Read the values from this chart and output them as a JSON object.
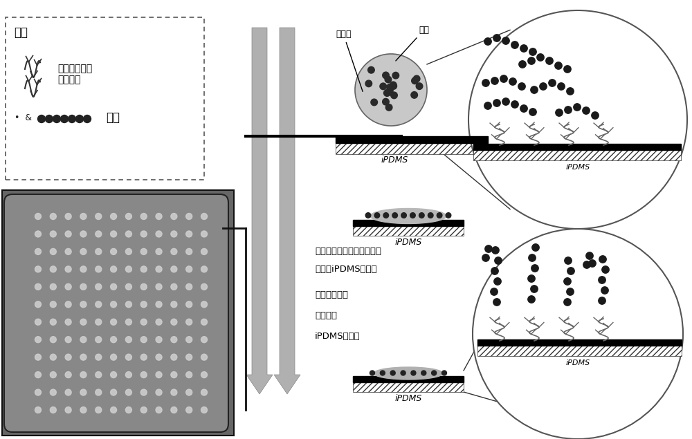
{
  "bg_color": "#ffffff",
  "legend_title": "图例",
  "legend_label1": "聚乙二醇甲基\n丙烯酸酯",
  "legend_label2": "多肽",
  "arrow1_label_line1": "点样缓冲液蝎发，多肽与基",
  "arrow1_label_line2": "底膜（iPDMS）反应",
  "arrow2_label_line1": "多肽通过化学",
  "arrow2_label_line2": "键固定于",
  "arrow2_label_line3": "iPDMS膜表面",
  "label_buffersol": "缓冲液",
  "label_peptide": "多肽",
  "label_ipdms1": "iPDMS",
  "label_ipdms2": "iPDMS",
  "label_ipdms3": "iPDMS",
  "label_ipdms4": "iPDMS"
}
